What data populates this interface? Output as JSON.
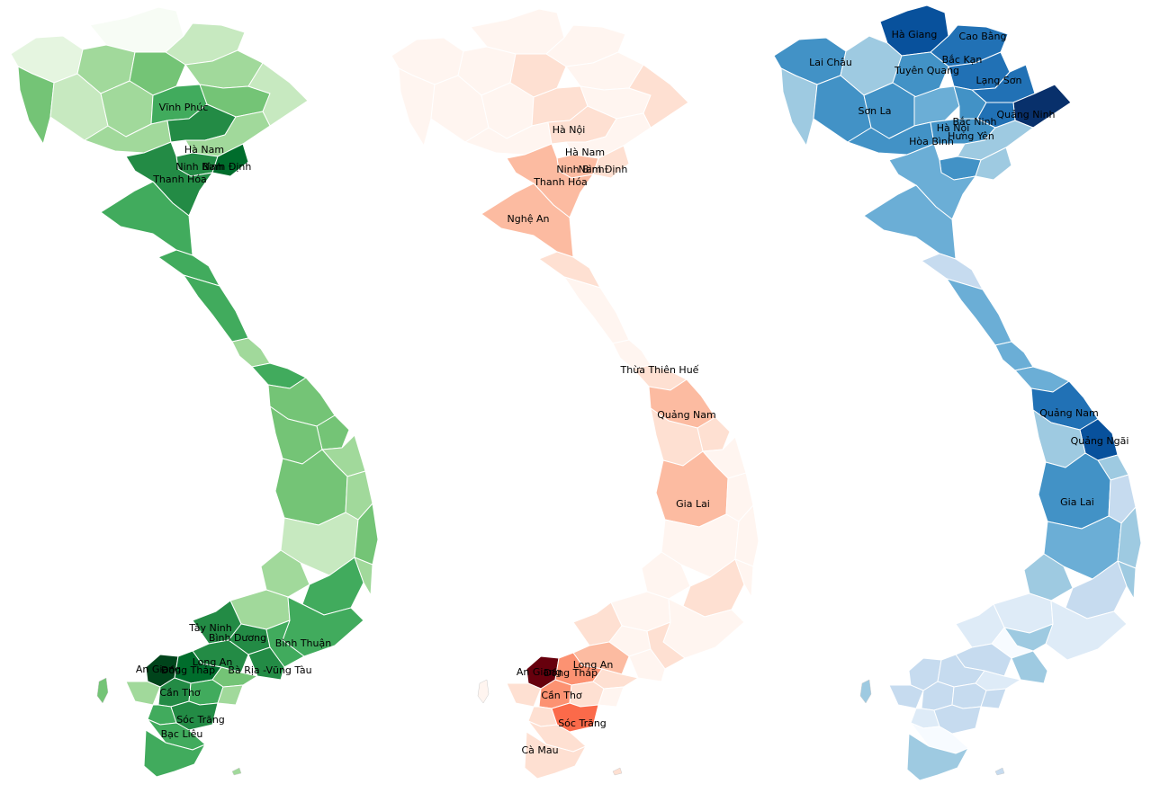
{
  "maps": [
    {
      "palette": "Greens",
      "colors": [
        "#f7fcf5",
        "#e5f5e0",
        "#c7e9c0",
        "#a1d99b",
        "#74c476",
        "#41ab5d",
        "#238b45",
        "#006d2c",
        "#00441b"
      ],
      "labels": [
        "Vĩnh Phúc",
        "Hà Nam",
        "Ninh Bình",
        "Nam Định",
        "Thanh Hóa",
        "Tây Ninh",
        "Bình Dương",
        "Bình Thuận",
        "Long An",
        "An Giang",
        "Đồng Tháp",
        "Bà Rịa -Vũng Tàu",
        "Cần Thơ",
        "Sóc Trăng",
        "Bạc Liêu"
      ]
    },
    {
      "palette": "Reds",
      "colors": [
        "#fff5f0",
        "#fee0d2",
        "#fcbba1",
        "#fc9272",
        "#fb6a4a",
        "#ef3b2c",
        "#cb181d",
        "#a50f15",
        "#67000d"
      ],
      "labels": [
        "Hà Nội",
        "Hà Nam",
        "Ninh Bình",
        "Nam Định",
        "Thanh Hóa",
        "Nghệ An",
        "Thừa Thiên Huế",
        "Quảng Nam",
        "Gia Lai",
        "Long An",
        "An Giang",
        "Đồng Tháp",
        "Cần Thơ",
        "Sóc Trăng",
        "Cà Mau"
      ]
    },
    {
      "palette": "Blues",
      "colors": [
        "#f7fbff",
        "#deebf7",
        "#c6dbef",
        "#9ecae1",
        "#6baed6",
        "#4292c6",
        "#2171b5",
        "#08519c",
        "#08306b"
      ],
      "labels": [
        "Hà Giang",
        "Cao Bằng",
        "Lai Châu",
        "Bắc Kạn",
        "Tuyên Quang",
        "Lạng Sơn",
        "Sơn La",
        "Quảng Ninh",
        "Bắc Ninh",
        "Hà Nội",
        "Hưng Yên",
        "Hòa Bình",
        "Quảng Nam",
        "Quảng Ngãi",
        "Gia Lai"
      ]
    }
  ]
}
